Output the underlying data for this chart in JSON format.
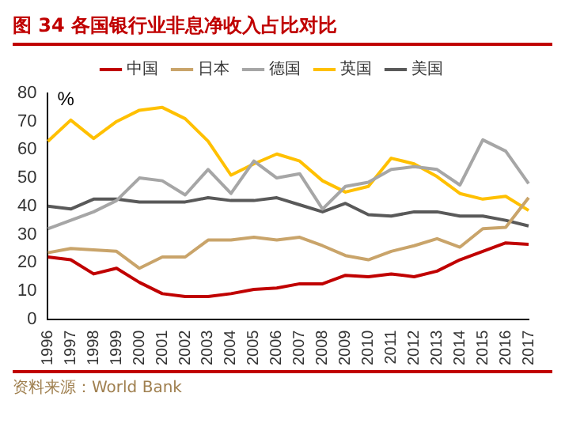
{
  "chart_data": {
    "type": "line",
    "title": "图 34  各国银行业非息净收入占比对比",
    "ylabel": "%",
    "annotations": [
      "资料来源：World Bank"
    ],
    "categories": [
      "1996",
      "1997",
      "1998",
      "1999",
      "2000",
      "2001",
      "2002",
      "2003",
      "2004",
      "2005",
      "2006",
      "2007",
      "2008",
      "2009",
      "2010",
      "2011",
      "2012",
      "2013",
      "2014",
      "2015",
      "2016",
      "2017"
    ],
    "series": [
      {
        "name": "中国",
        "color": "#c00000",
        "values": [
          22,
          21,
          16,
          18,
          13,
          9,
          8,
          8,
          9,
          10.5,
          11,
          12.5,
          12.5,
          15.5,
          15,
          16,
          15,
          17,
          21,
          24,
          27,
          26.5
        ]
      },
      {
        "name": "日本",
        "color": "#c9a46a",
        "values": [
          23.5,
          25,
          24.5,
          24,
          18,
          22,
          22,
          28,
          28,
          29,
          28,
          29,
          26,
          22.5,
          21,
          24,
          26,
          28.5,
          25.5,
          32,
          32.5,
          43
        ]
      },
      {
        "name": "德国",
        "color": "#a6a6a6",
        "values": [
          32,
          35,
          38,
          42,
          50,
          49,
          44,
          53,
          44.5,
          56,
          50,
          51.5,
          39,
          47,
          48.5,
          53,
          54,
          53,
          47.5,
          63.5,
          59.5,
          48
        ]
      },
      {
        "name": "英国",
        "color": "#ffc000",
        "values": [
          63,
          70.5,
          64,
          70,
          74,
          75,
          71,
          63,
          51,
          55,
          58.5,
          56,
          49,
          45,
          47,
          57,
          55,
          50.5,
          44.5,
          42.5,
          43.5,
          38.5
        ]
      },
      {
        "name": "美国",
        "color": "#595959",
        "values": [
          40,
          39,
          42.5,
          42.5,
          41.5,
          41.5,
          41.5,
          43,
          42,
          42,
          43,
          40.5,
          38,
          41,
          37,
          36.5,
          38,
          38,
          36.5,
          36.5,
          35,
          33
        ]
      }
    ],
    "ylim": [
      0,
      80
    ],
    "yticks": [
      0,
      10,
      20,
      30,
      40,
      50,
      60,
      70,
      80
    ],
    "grid": false,
    "legend": "top",
    "marker": "none",
    "line_style": "solid"
  }
}
